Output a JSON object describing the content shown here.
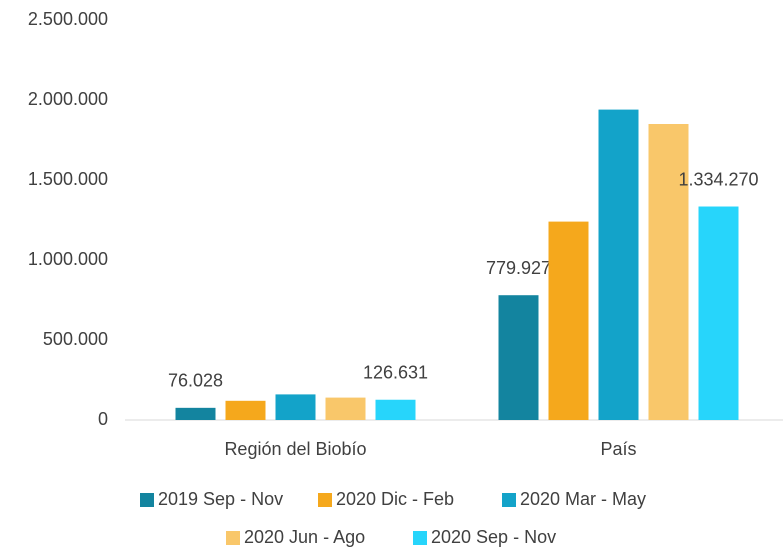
{
  "chart_data": {
    "type": "bar",
    "categories": [
      "Región del Biobío",
      "País"
    ],
    "series": [
      {
        "name": "2019 Sep - Nov",
        "color": "#13849f",
        "values": [
          76028,
          779927
        ],
        "value_labels": [
          "76.028",
          "779.927"
        ]
      },
      {
        "name": "2020 Dic - Feb",
        "color": "#f5a81c",
        "values": [
          120000,
          1240000
        ]
      },
      {
        "name": "2020 Mar - May",
        "color": "#13a3c9",
        "values": [
          160000,
          1940000
        ]
      },
      {
        "name": "2020 Jun - Ago",
        "color": "#f9c76a",
        "values": [
          140000,
          1850000
        ]
      },
      {
        "name": "2020 Sep - Nov",
        "color": "#27d5fb",
        "values": [
          126631,
          1334270
        ],
        "value_labels": [
          "126.631",
          "1.334.270"
        ]
      }
    ],
    "ylim": [
      0,
      2500000
    ],
    "yticks": [
      0,
      {
        "value": 500000,
        "label": "500.000"
      },
      {
        "value": 1000000,
        "label": "1.000.000"
      },
      {
        "value": 1500000,
        "label": "1.500.000"
      },
      {
        "value": 2000000,
        "label": "2.000.000"
      },
      {
        "value": 2500000,
        "label": "2.500.000"
      }
    ],
    "grid": false,
    "legend": "bottom"
  }
}
